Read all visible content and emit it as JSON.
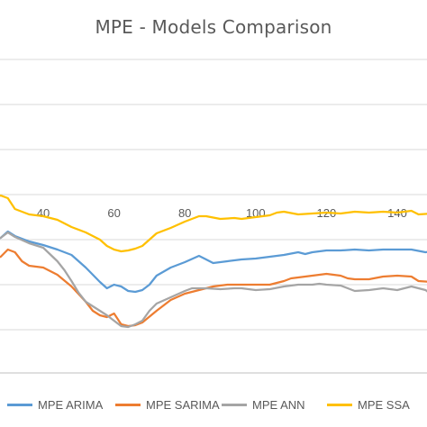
{
  "chart_data": {
    "type": "line",
    "title": "MPE - Models Comparison",
    "xlabel": "",
    "ylabel": "",
    "x_tick_labels": [
      "40",
      "60",
      "80",
      "100",
      "120",
      "140"
    ],
    "x_ticks": [
      40,
      60,
      80,
      100,
      120,
      140
    ],
    "xlim": [
      20,
      155
    ],
    "grid": true,
    "legend_position": "bottom",
    "series": [
      {
        "name": "MPE ARIMA",
        "color": "#5B9BD5",
        "points": [
          [
            20,
            262
          ],
          [
            24,
            268
          ],
          [
            28,
            264
          ],
          [
            30,
            257
          ],
          [
            32,
            262
          ],
          [
            36,
            268
          ],
          [
            40,
            272
          ],
          [
            44,
            277
          ],
          [
            48,
            283
          ],
          [
            52,
            297
          ],
          [
            56,
            313
          ],
          [
            58,
            320
          ],
          [
            60,
            316
          ],
          [
            62,
            318
          ],
          [
            64,
            323
          ],
          [
            66,
            324
          ],
          [
            68,
            322
          ],
          [
            70,
            316
          ],
          [
            72,
            306
          ],
          [
            76,
            297
          ],
          [
            80,
            291
          ],
          [
            84,
            284
          ],
          [
            86,
            288
          ],
          [
            88,
            292
          ],
          [
            92,
            290
          ],
          [
            96,
            288
          ],
          [
            100,
            287
          ],
          [
            104,
            285
          ],
          [
            108,
            283
          ],
          [
            112,
            280
          ],
          [
            114,
            282
          ],
          [
            116,
            280
          ],
          [
            120,
            278
          ],
          [
            124,
            278
          ],
          [
            128,
            277
          ],
          [
            132,
            278
          ],
          [
            136,
            277
          ],
          [
            140,
            277
          ],
          [
            144,
            277
          ],
          [
            148,
            280
          ],
          [
            152,
            278
          ],
          [
            155,
            278
          ]
        ]
      },
      {
        "name": "MPE SARIMA",
        "color": "#ED7D31",
        "points": [
          [
            20,
            286
          ],
          [
            24,
            289
          ],
          [
            28,
            285
          ],
          [
            30,
            277
          ],
          [
            32,
            280
          ],
          [
            34,
            290
          ],
          [
            36,
            295
          ],
          [
            40,
            297
          ],
          [
            44,
            305
          ],
          [
            48,
            318
          ],
          [
            52,
            335
          ],
          [
            54,
            345
          ],
          [
            56,
            350
          ],
          [
            58,
            352
          ],
          [
            60,
            348
          ],
          [
            62,
            360
          ],
          [
            64,
            362
          ],
          [
            66,
            361
          ],
          [
            68,
            358
          ],
          [
            72,
            345
          ],
          [
            76,
            333
          ],
          [
            80,
            326
          ],
          [
            84,
            322
          ],
          [
            86,
            320
          ],
          [
            88,
            318
          ],
          [
            92,
            316
          ],
          [
            96,
            316
          ],
          [
            100,
            316
          ],
          [
            104,
            316
          ],
          [
            108,
            312
          ],
          [
            110,
            309
          ],
          [
            112,
            308
          ],
          [
            116,
            306
          ],
          [
            120,
            304
          ],
          [
            124,
            306
          ],
          [
            126,
            309
          ],
          [
            128,
            310
          ],
          [
            132,
            310
          ],
          [
            136,
            307
          ],
          [
            140,
            306
          ],
          [
            144,
            307
          ],
          [
            146,
            312
          ],
          [
            150,
            313
          ],
          [
            155,
            313
          ]
        ]
      },
      {
        "name": "MPE ANN",
        "color": "#A5A5A5",
        "points": [
          [
            20,
            266
          ],
          [
            24,
            270
          ],
          [
            28,
            264
          ],
          [
            30,
            258
          ],
          [
            32,
            263
          ],
          [
            36,
            270
          ],
          [
            40,
            275
          ],
          [
            44,
            290
          ],
          [
            46,
            300
          ],
          [
            48,
            312
          ],
          [
            50,
            325
          ],
          [
            52,
            335
          ],
          [
            56,
            345
          ],
          [
            58,
            350
          ],
          [
            60,
            356
          ],
          [
            62,
            362
          ],
          [
            64,
            363
          ],
          [
            66,
            360
          ],
          [
            68,
            356
          ],
          [
            70,
            345
          ],
          [
            72,
            337
          ],
          [
            76,
            330
          ],
          [
            80,
            323
          ],
          [
            82,
            320
          ],
          [
            86,
            320
          ],
          [
            90,
            321
          ],
          [
            94,
            320
          ],
          [
            96,
            320
          ],
          [
            100,
            322
          ],
          [
            104,
            321
          ],
          [
            108,
            318
          ],
          [
            112,
            316
          ],
          [
            116,
            316
          ],
          [
            118,
            315
          ],
          [
            120,
            316
          ],
          [
            124,
            317
          ],
          [
            126,
            320
          ],
          [
            128,
            323
          ],
          [
            132,
            322
          ],
          [
            136,
            320
          ],
          [
            140,
            322
          ],
          [
            144,
            318
          ],
          [
            148,
            322
          ],
          [
            150,
            328
          ],
          [
            152,
            333
          ],
          [
            155,
            334
          ]
        ]
      },
      {
        "name": "MPE SSA",
        "color": "#FFC000",
        "points": [
          [
            20,
            225
          ],
          [
            24,
            223
          ],
          [
            28,
            217
          ],
          [
            30,
            220
          ],
          [
            32,
            232
          ],
          [
            36,
            238
          ],
          [
            40,
            240
          ],
          [
            44,
            244
          ],
          [
            48,
            252
          ],
          [
            52,
            258
          ],
          [
            56,
            266
          ],
          [
            58,
            273
          ],
          [
            60,
            277
          ],
          [
            62,
            279
          ],
          [
            64,
            278
          ],
          [
            66,
            276
          ],
          [
            68,
            273
          ],
          [
            70,
            266
          ],
          [
            72,
            259
          ],
          [
            76,
            253
          ],
          [
            80,
            246
          ],
          [
            84,
            240
          ],
          [
            86,
            240
          ],
          [
            90,
            243
          ],
          [
            94,
            242
          ],
          [
            96,
            243
          ],
          [
            100,
            241
          ],
          [
            104,
            239
          ],
          [
            106,
            236
          ],
          [
            108,
            235
          ],
          [
            112,
            238
          ],
          [
            116,
            237
          ],
          [
            120,
            236
          ],
          [
            124,
            237
          ],
          [
            126,
            236
          ],
          [
            128,
            235
          ],
          [
            132,
            236
          ],
          [
            136,
            235
          ],
          [
            140,
            236
          ],
          [
            144,
            234
          ],
          [
            146,
            238
          ],
          [
            150,
            237
          ],
          [
            155,
            237
          ]
        ]
      }
    ]
  }
}
